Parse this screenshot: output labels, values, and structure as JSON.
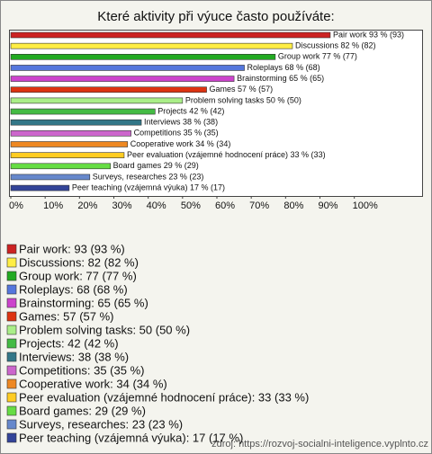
{
  "chart_data": {
    "type": "bar",
    "orientation": "horizontal",
    "title": "Které aktivity při výuce často používáte:",
    "categories": [
      "Pair work",
      "Discussions",
      "Group work",
      "Roleplays",
      "Brainstorming",
      "Games",
      "Problem solving tasks",
      "Projects",
      "Interviews",
      "Competitions",
      "Cooperative work",
      "Peer evaluation (vzájemné hodnocení práce)",
      "Board games",
      "Surveys, researches",
      "Peer teaching (vzájemná výuka)"
    ],
    "values": [
      93,
      82,
      77,
      68,
      65,
      57,
      50,
      42,
      38,
      35,
      34,
      33,
      29,
      23,
      17
    ],
    "value_labels": [
      "Pair work 93 % (93)",
      "Discussions 82 % (82)",
      "Group work 77 % (77)",
      "Roleplays 68 % (68)",
      "Brainstorming 65 % (65)",
      "Games 57 % (57)",
      "Problem solving tasks 50 % (50)",
      "Projects 42 % (42)",
      "Interviews 38 % (38)",
      "Competitions 35 % (35)",
      "Cooperative work 34 % (34)",
      "Peer evaluation (vzájemné hodnocení práce) 33 % (33)",
      "Board games 29 % (29)",
      "Surveys, researches 23 % (23)",
      "Peer teaching (vzájemná výuka) 17 % (17)"
    ],
    "legend_labels": [
      "Pair work: 93 (93 %)",
      "Discussions: 82 (82 %)",
      "Group work: 77 (77 %)",
      "Roleplays: 68 (68 %)",
      "Brainstorming: 65 (65 %)",
      "Games: 57 (57 %)",
      "Problem solving tasks: 50 (50 %)",
      "Projects: 42 (42 %)",
      "Interviews: 38 (38 %)",
      "Competitions: 35 (35 %)",
      "Cooperative work: 34 (34 %)",
      "Peer evaluation (vzájemné hodnocení práce): 33 (33 %)",
      "Board games: 29 (29 %)",
      "Surveys, researches: 23 (23 %)",
      "Peer teaching (vzájemná výuka): 17 (17 %)"
    ],
    "colors": [
      "#cc2222",
      "#ffee44",
      "#22aa22",
      "#5577dd",
      "#cc44cc",
      "#dd3311",
      "#aaee88",
      "#44bb44",
      "#337788",
      "#cc66cc",
      "#ee8822",
      "#ffcc22",
      "#66dd44",
      "#6688cc",
      "#334499"
    ],
    "xlim": [
      0,
      120
    ],
    "xticks": [
      {
        "value": 0,
        "label": "0%"
      },
      {
        "value": 10,
        "label": "10%"
      },
      {
        "value": 20,
        "label": "20%"
      },
      {
        "value": 30,
        "label": "30%"
      },
      {
        "value": 40,
        "label": "40%"
      },
      {
        "value": 50,
        "label": "50%"
      },
      {
        "value": 60,
        "label": "60%"
      },
      {
        "value": 70,
        "label": "70%"
      },
      {
        "value": 80,
        "label": "80%"
      },
      {
        "value": 90,
        "label": "90%"
      },
      {
        "value": 100,
        "label": "100%"
      }
    ],
    "source": "zdroj: https://rozvoj-socialni-inteligence.vyplnto.cz"
  }
}
